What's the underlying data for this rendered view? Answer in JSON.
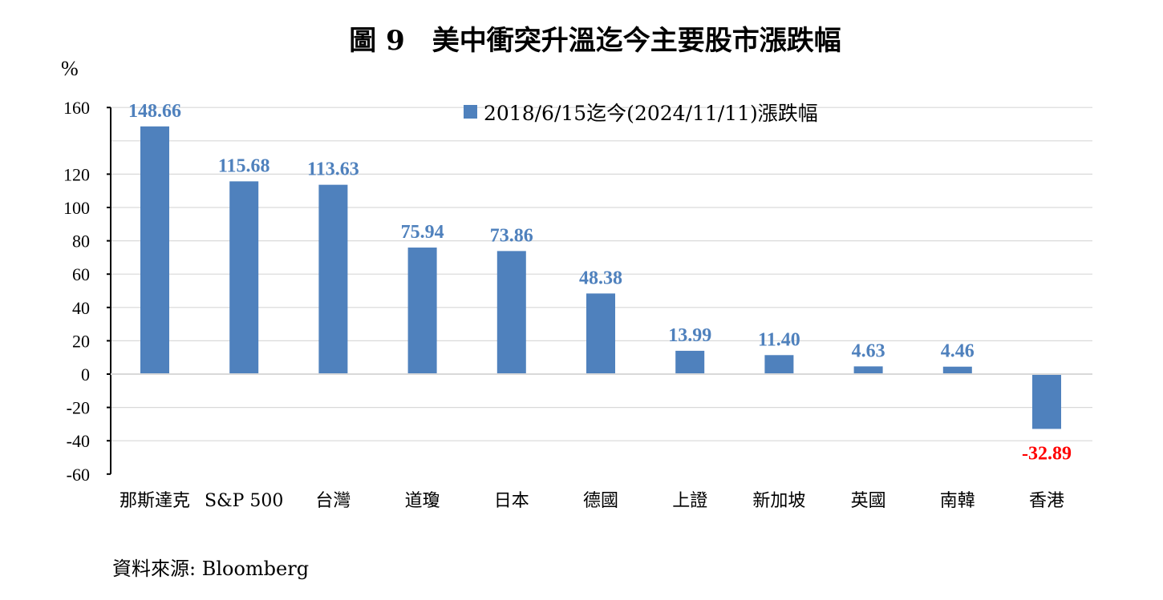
{
  "title": "圖 9　美中衝突升溫迄今主要股市漲跌幅",
  "unit_label": "%",
  "source": "資料來源: Bloomberg",
  "colors": {
    "bar": "#4f81bd",
    "label_positive": "#4f81bd",
    "label_negative": "#ff0000",
    "grid": "#d9d9d9",
    "axis": "#000000"
  },
  "chart_data": {
    "type": "bar",
    "categories": [
      "那斯達克",
      "S&P 500",
      "台灣",
      "道瓊",
      "日本",
      "德國",
      "上證",
      "新加坡",
      "英國",
      "南韓",
      "香港"
    ],
    "series": [
      {
        "name": "2018/6/15迄今(2024/11/11)漲跌幅",
        "values": [
          148.66,
          115.68,
          113.63,
          75.94,
          73.86,
          48.38,
          13.99,
          11.4,
          4.63,
          4.46,
          -32.89
        ]
      }
    ],
    "data_labels": [
      "148.66",
      "115.68",
      "113.63",
      "75.94",
      "73.86",
      "48.38",
      "13.99",
      "11.40",
      "4.63",
      "4.46",
      "-32.89"
    ],
    "ylim": [
      -60,
      160
    ],
    "yticks": [
      160,
      120,
      100,
      80,
      60,
      40,
      20,
      0,
      -20,
      -40,
      -60
    ],
    "ytick_labels": [
      "160",
      "120",
      "100",
      "80",
      "60",
      "40",
      "20",
      "0",
      "-20",
      "-40",
      "-60"
    ],
    "grid": true,
    "legend_position": "top-right"
  }
}
